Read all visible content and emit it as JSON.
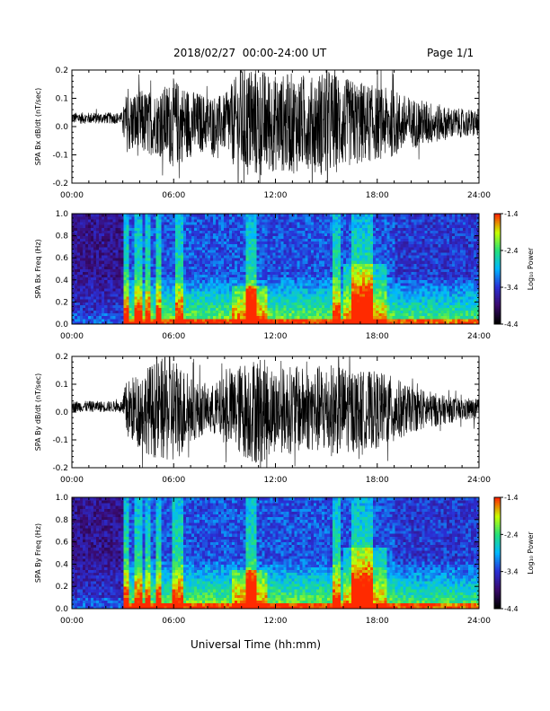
{
  "header": {
    "title": "2018/02/27  00:00-24:00 UT",
    "page_label": "Page 1/1"
  },
  "x_axis_label": "Universal Time (hh:mm)",
  "colors": {
    "trace": "#000000",
    "colormap": [
      "#000000",
      "#3a0a6e",
      "#2a2fd6",
      "#00b8ff",
      "#24e07a",
      "#c8ff00",
      "#ff2a00"
    ]
  },
  "chart_data": [
    {
      "type": "line",
      "ylabel": "SPA Bx dB/dt (nT/sec)",
      "xlim": [
        "00:00",
        "24:00"
      ],
      "xticks": [
        "00:00",
        "06:00",
        "12:00",
        "18:00",
        "24:00"
      ],
      "ylim": [
        -0.2,
        0.2
      ],
      "yticks": [
        "-0.2",
        "-0.1",
        "0.0",
        "0.1",
        "0.2"
      ],
      "envelope": {
        "hour": [
          0,
          1,
          2,
          3,
          3.1,
          4,
          5,
          6,
          7,
          8,
          9,
          10,
          11,
          12,
          13,
          14,
          15,
          16,
          17,
          18,
          19,
          20,
          21,
          22,
          23,
          24
        ],
        "amplitude": [
          0.02,
          0.02,
          0.02,
          0.02,
          0.1,
          0.12,
          0.11,
          0.16,
          0.12,
          0.1,
          0.1,
          0.2,
          0.2,
          0.17,
          0.18,
          0.16,
          0.2,
          0.16,
          0.15,
          0.13,
          0.12,
          0.09,
          0.08,
          0.06,
          0.05,
          0.05
        ]
      },
      "baseline_offset": 0.03
    },
    {
      "type": "heatmap",
      "ylabel": "SPA Bx Freq (Hz)",
      "xlim": [
        "00:00",
        "24:00"
      ],
      "xticks": [
        "00:00",
        "06:00",
        "12:00",
        "18:00",
        "24:00"
      ],
      "ylim": [
        0.0,
        1.0
      ],
      "yticks": [
        "0.0",
        "0.2",
        "0.4",
        "0.6",
        "0.8",
        "1.0"
      ],
      "colorbar": {
        "label": "Log₁₀ Power",
        "range": [
          -4.4,
          -1.4
        ],
        "ticks": [
          "-1.4",
          "-2.4",
          "-3.4",
          "-4.4"
        ]
      },
      "activity_hours": [
        [
          3.0,
          3.4
        ],
        [
          3.7,
          4.1
        ],
        [
          4.4,
          4.7
        ],
        [
          4.9,
          5.2
        ],
        [
          6.1,
          6.6
        ],
        [
          10.3,
          10.9
        ],
        [
          15.4,
          15.9
        ],
        [
          16.5,
          17.8
        ]
      ]
    },
    {
      "type": "line",
      "ylabel": "SPA By dB/dt (nT/sec)",
      "xlim": [
        "00:00",
        "24:00"
      ],
      "xticks": [
        "00:00",
        "06:00",
        "12:00",
        "18:00",
        "24:00"
      ],
      "ylim": [
        -0.2,
        0.2
      ],
      "yticks": [
        "-0.2",
        "-0.1",
        "0.0",
        "0.1",
        "0.2"
      ],
      "envelope": {
        "hour": [
          0,
          1,
          2,
          3,
          3.1,
          4,
          5,
          6,
          7,
          8,
          9,
          10,
          11,
          12,
          13,
          14,
          15,
          16,
          17,
          18,
          19,
          20,
          21,
          22,
          23,
          24
        ],
        "amplitude": [
          0.02,
          0.02,
          0.02,
          0.02,
          0.1,
          0.14,
          0.18,
          0.2,
          0.12,
          0.08,
          0.12,
          0.17,
          0.2,
          0.15,
          0.16,
          0.15,
          0.17,
          0.16,
          0.14,
          0.14,
          0.12,
          0.08,
          0.07,
          0.05,
          0.04,
          0.04
        ]
      },
      "baseline_offset": 0.02
    },
    {
      "type": "heatmap",
      "ylabel": "SPA By Freq (Hz)",
      "xlim": [
        "00:00",
        "24:00"
      ],
      "xticks": [
        "00:00",
        "06:00",
        "12:00",
        "18:00",
        "24:00"
      ],
      "ylim": [
        0.0,
        1.0
      ],
      "yticks": [
        "0.0",
        "0.2",
        "0.4",
        "0.6",
        "0.8",
        "1.0"
      ],
      "colorbar": {
        "label": "Log₁₀ Power",
        "range": [
          -4.4,
          -1.4
        ],
        "ticks": [
          "-1.4",
          "-2.4",
          "-3.4",
          "-4.4"
        ]
      },
      "activity_hours": [
        [
          3.0,
          3.4
        ],
        [
          3.7,
          4.1
        ],
        [
          4.4,
          4.7
        ],
        [
          4.9,
          5.2
        ],
        [
          5.9,
          6.6
        ],
        [
          10.3,
          10.9
        ],
        [
          15.4,
          15.9
        ],
        [
          16.5,
          17.8
        ]
      ]
    }
  ]
}
